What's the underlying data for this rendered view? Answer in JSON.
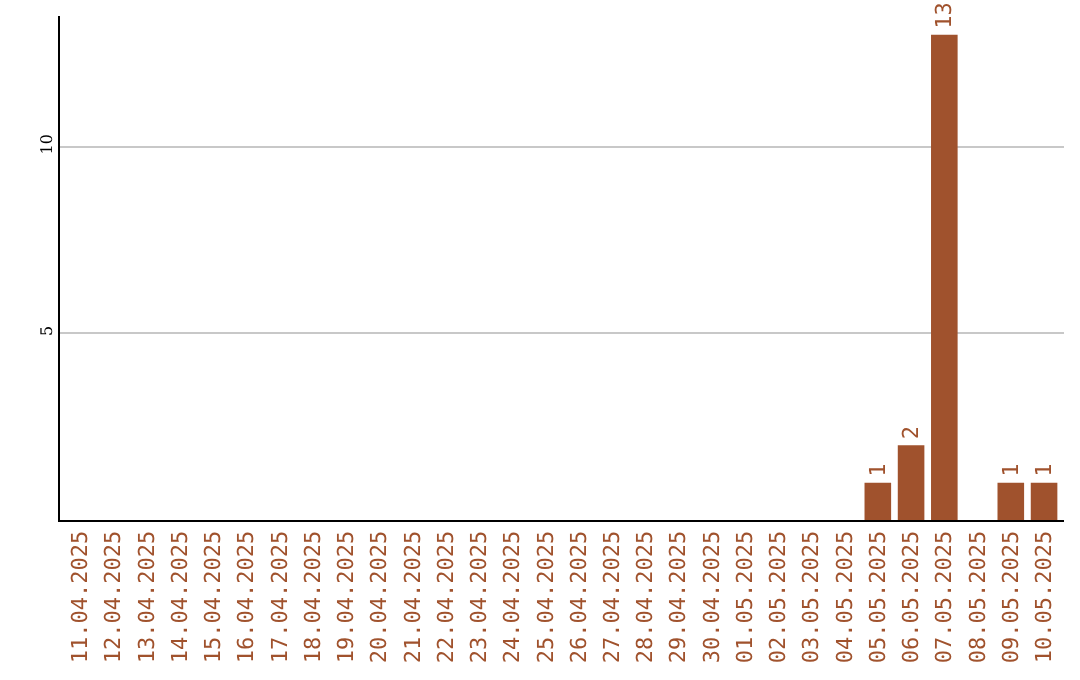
{
  "chart_data": {
    "type": "bar",
    "categories": [
      "11.04.2025",
      "12.04.2025",
      "13.04.2025",
      "14.04.2025",
      "15.04.2025",
      "16.04.2025",
      "17.04.2025",
      "18.04.2025",
      "19.04.2025",
      "20.04.2025",
      "21.04.2025",
      "22.04.2025",
      "23.04.2025",
      "24.04.2025",
      "25.04.2025",
      "26.04.2025",
      "27.04.2025",
      "28.04.2025",
      "29.04.2025",
      "30.04.2025",
      "01.05.2025",
      "02.05.2025",
      "03.05.2025",
      "04.05.2025",
      "05.05.2025",
      "06.05.2025",
      "07.05.2025",
      "08.05.2025",
      "09.05.2025",
      "10.05.2025"
    ],
    "values": [
      0,
      0,
      0,
      0,
      0,
      0,
      0,
      0,
      0,
      0,
      0,
      0,
      0,
      0,
      0,
      0,
      0,
      0,
      0,
      0,
      0,
      0,
      0,
      0,
      1,
      2,
      13,
      0,
      1,
      1
    ],
    "value_labels": [
      null,
      null,
      null,
      null,
      null,
      null,
      null,
      null,
      null,
      null,
      null,
      null,
      null,
      null,
      null,
      null,
      null,
      null,
      null,
      null,
      null,
      null,
      null,
      null,
      "1",
      "2",
      "13",
      null,
      "1",
      "1"
    ],
    "color": "#a0522d",
    "ylim": [
      0,
      13.5
    ],
    "yticks": [
      5,
      10
    ],
    "grid": "y",
    "legend": false
  }
}
